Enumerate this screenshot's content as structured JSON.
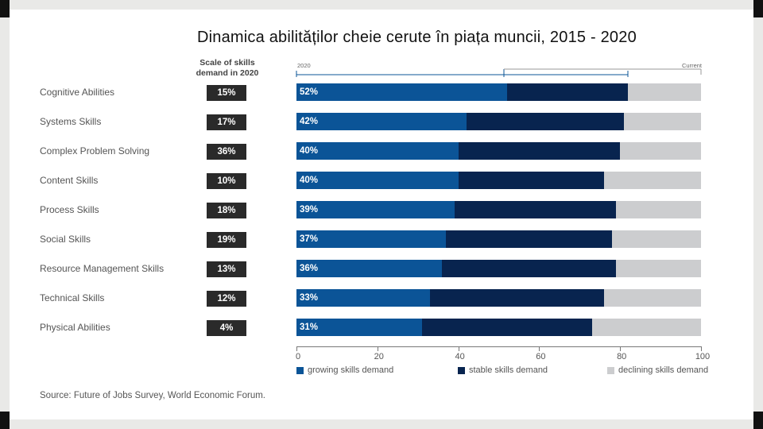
{
  "slide_title": "Dinamica abilităților cheie cerute în piața muncii, 2015 - 2020",
  "scale_header": {
    "line1": "Scale of skills",
    "line2": "demand in 2020"
  },
  "timeline": {
    "start_label": "2020",
    "end_label": "Current"
  },
  "chart_data": {
    "type": "bar",
    "stacked": true,
    "orientation": "horizontal",
    "categories": [
      "Cognitive Abilities",
      "Systems Skills",
      "Complex Problem Solving",
      "Content Skills",
      "Process Skills",
      "Social Skills",
      "Resource Management Skills",
      "Technical Skills",
      "Physical Abilities"
    ],
    "scale_of_demand": [
      "15%",
      "17%",
      "36%",
      "10%",
      "18%",
      "19%",
      "13%",
      "12%",
      "4%"
    ],
    "bar_labels": [
      "52%",
      "42%",
      "40%",
      "40%",
      "39%",
      "37%",
      "36%",
      "33%",
      "31%"
    ],
    "series": [
      {
        "name": "growing skills demand",
        "color": "#0b5497",
        "values": [
          52,
          42,
          40,
          40,
          39,
          37,
          36,
          33,
          31
        ]
      },
      {
        "name": "stable skills demand",
        "color": "#08244f",
        "values": [
          30,
          39,
          40,
          36,
          40,
          41,
          43,
          43,
          42
        ]
      },
      {
        "name": "declining skills demand",
        "color": "#cccdcf",
        "values": [
          18,
          19,
          20,
          24,
          21,
          22,
          21,
          24,
          27
        ]
      }
    ],
    "xlim": [
      0,
      100
    ],
    "xticks": [
      "0",
      "20",
      "40",
      "60",
      "80",
      "100"
    ],
    "legend_position": "bottom"
  },
  "source": "Source: Future of Jobs Survey, World Economic Forum."
}
